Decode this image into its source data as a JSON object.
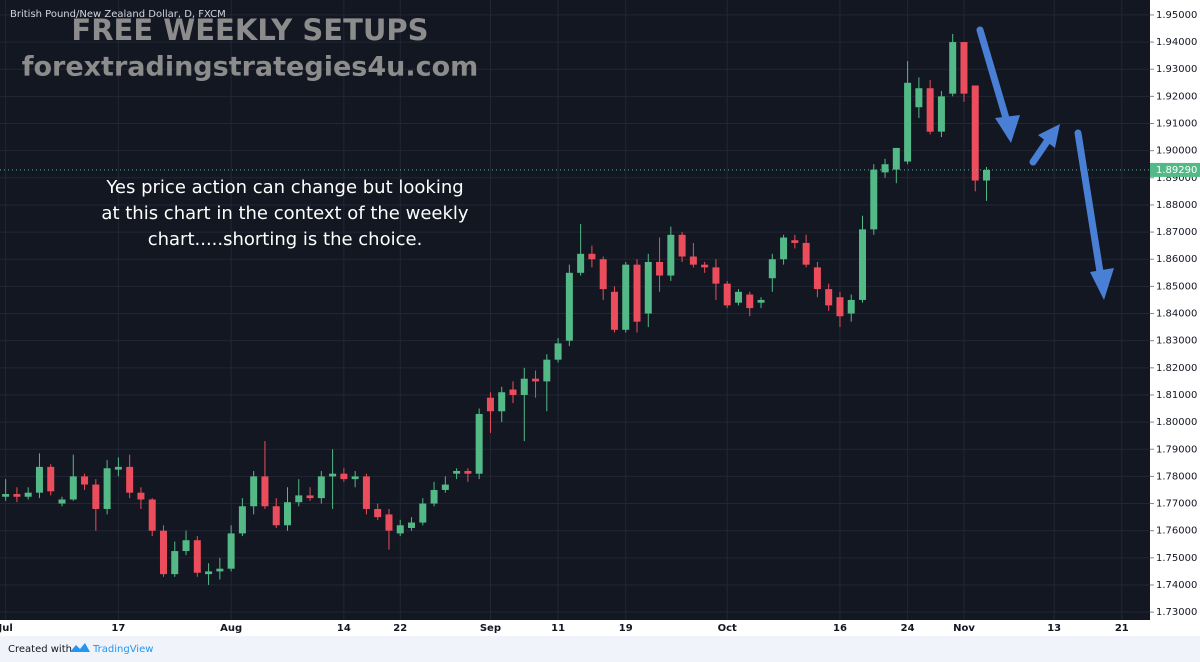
{
  "chart_data": {
    "type": "candlestick",
    "title": "British Pound/New Zealand Dollar, D, FXCM",
    "watermark": [
      "FREE WEEKLY SETUPS",
      "forextradingstrategies4u.com"
    ],
    "annotation": [
      "Yes price action can change but looking",
      "at this chart in the context of the weekly",
      "chart.....shorting is the choice."
    ],
    "footer": {
      "prefix": "Created with",
      "brand": "TradingView"
    },
    "up_color": "#53b987",
    "down_color": "#eb4d5c",
    "grid": true,
    "ylim": [
      1.7271,
      1.9555
    ],
    "yticks": [
      {
        "value": 1.73,
        "label": "1.73000"
      },
      {
        "value": 1.74,
        "label": "1.74000"
      },
      {
        "value": 1.75,
        "label": "1.75000"
      },
      {
        "value": 1.76,
        "label": "1.76000"
      },
      {
        "value": 1.77,
        "label": "1.77000"
      },
      {
        "value": 1.78,
        "label": "1.78000"
      },
      {
        "value": 1.79,
        "label": "1.79000"
      },
      {
        "value": 1.8,
        "label": "1.80000"
      },
      {
        "value": 1.81,
        "label": "1.81000"
      },
      {
        "value": 1.82,
        "label": "1.82000"
      },
      {
        "value": 1.83,
        "label": "1.83000"
      },
      {
        "value": 1.84,
        "label": "1.84000"
      },
      {
        "value": 1.85,
        "label": "1.85000"
      },
      {
        "value": 1.86,
        "label": "1.86000"
      },
      {
        "value": 1.87,
        "label": "1.87000"
      },
      {
        "value": 1.88,
        "label": "1.88000"
      },
      {
        "value": 1.89,
        "label": "1.89000"
      },
      {
        "value": 1.9,
        "label": "1.90000"
      },
      {
        "value": 1.91,
        "label": "1.91000"
      },
      {
        "value": 1.92,
        "label": "1.92000"
      },
      {
        "value": 1.93,
        "label": "1.93000"
      },
      {
        "value": 1.94,
        "label": "1.94000"
      },
      {
        "value": 1.95,
        "label": "1.95000"
      }
    ],
    "last_price": {
      "value": 1.8929,
      "label": "1.89290"
    },
    "categories": [
      "Jul",
      null,
      null,
      null,
      null,
      null,
      null,
      null,
      null,
      null,
      "17",
      null,
      null,
      null,
      null,
      null,
      null,
      null,
      null,
      null,
      "Aug",
      null,
      null,
      null,
      null,
      null,
      null,
      null,
      null,
      null,
      "14",
      null,
      null,
      null,
      null,
      "22",
      null,
      null,
      null,
      null,
      null,
      null,
      null,
      "Sep",
      null,
      null,
      null,
      null,
      null,
      "11",
      null,
      null,
      null,
      null,
      null,
      "19",
      null,
      null,
      null,
      null,
      null,
      null,
      null,
      null,
      "Oct",
      null,
      null,
      null,
      null,
      null,
      null,
      null,
      null,
      null,
      "16",
      null,
      null,
      null,
      null,
      null,
      "24",
      null,
      null,
      null,
      null,
      "Nov",
      null,
      null,
      null,
      null,
      null,
      null,
      null,
      "13",
      null,
      null,
      null,
      null,
      null,
      "21",
      null,
      null
    ],
    "open": [
      1.7725,
      1.7735,
      1.7725,
      1.774,
      1.7835,
      1.77,
      1.7715,
      1.78,
      1.777,
      1.768,
      1.7825,
      1.7835,
      1.774,
      1.7715,
      1.76,
      1.744,
      1.7525,
      1.7565,
      1.744,
      1.745,
      1.746,
      1.759,
      1.769,
      1.78,
      1.769,
      1.762,
      1.7705,
      1.773,
      1.772,
      1.78,
      1.781,
      1.779,
      1.78,
      1.768,
      1.766,
      1.759,
      1.761,
      1.763,
      1.77,
      1.775,
      1.781,
      1.782,
      1.781,
      1.809,
      1.804,
      1.812,
      1.81,
      1.816,
      1.815,
      1.823,
      1.83,
      1.855,
      1.862,
      1.86,
      1.848,
      1.834,
      1.858,
      1.84,
      1.859,
      1.854,
      1.869,
      1.861,
      1.858,
      1.857,
      1.851,
      1.844,
      1.847,
      1.844,
      1.853,
      1.86,
      1.867,
      1.866,
      1.857,
      1.849,
      1.846,
      1.84,
      1.845,
      1.871,
      1.892,
      1.893,
      1.896,
      1.916,
      1.923,
      1.907,
      1.921,
      1.94,
      1.924,
      1.889,
      null,
      null,
      null,
      null,
      null,
      null,
      null,
      null,
      null,
      null,
      null,
      null,
      null,
      null
    ],
    "high": [
      1.779,
      1.776,
      1.776,
      1.7885,
      1.7845,
      1.7725,
      1.788,
      1.781,
      1.779,
      1.786,
      1.787,
      1.788,
      1.776,
      1.772,
      1.762,
      1.756,
      1.76,
      1.758,
      1.748,
      1.75,
      1.762,
      1.772,
      1.782,
      1.793,
      1.772,
      1.776,
      1.779,
      1.776,
      1.782,
      1.79,
      1.783,
      1.782,
      1.781,
      1.77,
      1.768,
      1.764,
      1.765,
      1.772,
      1.778,
      1.78,
      1.783,
      1.783,
      1.805,
      1.811,
      1.813,
      1.815,
      1.82,
      1.819,
      1.825,
      1.831,
      1.858,
      1.873,
      1.865,
      1.861,
      1.85,
      1.859,
      1.86,
      1.862,
      1.868,
      1.872,
      1.87,
      1.866,
      1.859,
      1.86,
      1.852,
      1.849,
      1.848,
      1.846,
      1.862,
      1.869,
      1.869,
      1.869,
      1.859,
      1.851,
      1.848,
      1.847,
      1.876,
      1.895,
      1.897,
      1.901,
      1.933,
      1.927,
      1.926,
      1.922,
      1.943,
      1.94,
      1.924,
      1.894,
      null,
      null,
      null,
      null,
      null,
      null,
      null,
      null,
      null,
      null,
      null,
      null,
      null,
      null
    ],
    "low": [
      1.771,
      1.7705,
      1.7715,
      1.772,
      1.773,
      1.769,
      1.771,
      1.775,
      1.76,
      1.766,
      1.78,
      1.772,
      1.768,
      1.758,
      1.743,
      1.743,
      1.751,
      1.743,
      1.74,
      1.742,
      1.745,
      1.758,
      1.766,
      1.768,
      1.761,
      1.76,
      1.769,
      1.771,
      1.77,
      1.768,
      1.778,
      1.776,
      1.766,
      1.764,
      1.753,
      1.758,
      1.76,
      1.762,
      1.769,
      1.774,
      1.779,
      1.778,
      1.779,
      1.796,
      1.8,
      1.807,
      1.793,
      1.809,
      1.804,
      1.822,
      1.828,
      1.854,
      1.857,
      1.845,
      1.833,
      1.833,
      1.833,
      1.835,
      1.848,
      1.852,
      1.859,
      1.857,
      1.855,
      1.845,
      1.842,
      1.843,
      1.839,
      1.842,
      1.848,
      1.858,
      1.864,
      1.857,
      1.846,
      1.841,
      1.835,
      1.837,
      1.844,
      1.869,
      1.89,
      1.888,
      1.895,
      1.912,
      1.906,
      1.905,
      1.92,
      1.918,
      1.885,
      1.8815,
      null,
      null,
      null,
      null,
      null,
      null,
      null,
      null,
      null,
      null,
      null,
      null,
      null,
      null
    ],
    "close": [
      1.7735,
      1.7725,
      1.774,
      1.7835,
      1.7745,
      1.7715,
      1.78,
      1.777,
      1.768,
      1.783,
      1.7835,
      1.774,
      1.7715,
      1.76,
      1.744,
      1.7525,
      1.7565,
      1.7445,
      1.745,
      1.746,
      1.759,
      1.769,
      1.78,
      1.769,
      1.762,
      1.7705,
      1.773,
      1.772,
      1.78,
      1.781,
      1.779,
      1.78,
      1.768,
      1.765,
      1.76,
      1.762,
      1.763,
      1.77,
      1.775,
      1.777,
      1.782,
      1.781,
      1.803,
      1.804,
      1.811,
      1.81,
      1.816,
      1.815,
      1.823,
      1.829,
      1.855,
      1.862,
      1.86,
      1.849,
      1.834,
      1.858,
      1.837,
      1.859,
      1.854,
      1.869,
      1.861,
      1.858,
      1.857,
      1.851,
      1.843,
      1.848,
      1.842,
      1.845,
      1.86,
      1.868,
      1.866,
      1.858,
      1.849,
      1.843,
      1.839,
      1.845,
      1.871,
      1.893,
      1.895,
      1.901,
      1.925,
      1.923,
      1.907,
      1.92,
      1.94,
      1.921,
      1.889,
      1.8929,
      null,
      null,
      null,
      null,
      null,
      null,
      null,
      null,
      null,
      null,
      null,
      null,
      null,
      null
    ]
  }
}
